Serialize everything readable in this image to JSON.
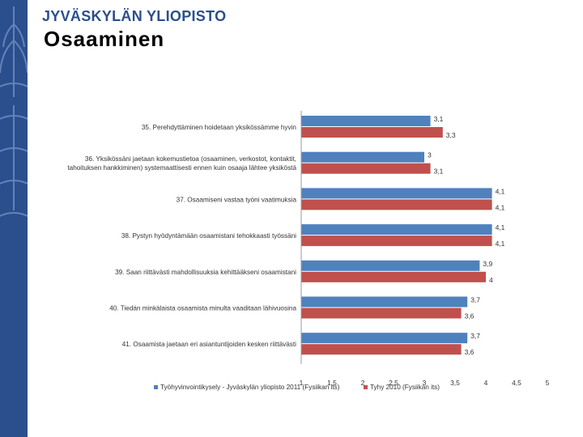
{
  "header": {
    "brand": "JYVÄSKYLÄN YLIOPISTO",
    "title": "Osaaminen"
  },
  "colors": {
    "sidebar": "#2b4f8c",
    "series_1": "#4f81bd",
    "series_2": "#c0504d"
  },
  "chart_data": {
    "type": "bar",
    "orientation": "horizontal",
    "title": "",
    "xlabel": "",
    "ylabel": "",
    "xlim": [
      1,
      5
    ],
    "x_ticks": [
      "1",
      "1,5",
      "2",
      "2,5",
      "3",
      "3,5",
      "4",
      "4,5",
      "5"
    ],
    "grid": false,
    "legend_position": "bottom",
    "categories": [
      "35. Perehdyttäminen hoidetaan yksikössämme hyvin",
      "36. Yksikössäni jaetaan kokemustietoa (osaaminen, verkostot, kontaktit, tahoituksen hankkiminen) systemaattisesti ennen kuin osaaja lähtee yksiköstä",
      "37. Osaamiseni vastaa työni vaatimuksia",
      "38. Pystyn hyödyntämään osaamistani tehokkaasti työssäni",
      "39. Saan riittävästi mahdollisuuksia kehittääkseni osaamistani",
      "40. Tiedän minkälaista osaamista minulta vaaditaan lähivuosina",
      "41. Osaamista jaetaan eri asiantuntijoiden kesken riittävästi"
    ],
    "category_lines": [
      [
        "35. Perehdyttäminen hoidetaan yksikössämme hyvin"
      ],
      [
        "36. Yksikössäni jaetaan kokemustietoa (osaaminen, verkostot, kontaktit,",
        "tahoituksen hankkiminen) systemaattisesti ennen kuin osaaja lähtee yksiköstä"
      ],
      [
        "37. Osaamiseni vastaa työni vaatimuksia"
      ],
      [
        "38. Pystyn hyödyntämään osaamistani tehokkaasti työssäni"
      ],
      [
        "39. Saan riittävästi mahdollisuuksia kehittääkseni osaamistani"
      ],
      [
        "40. Tiedän minkälaista osaamista minulta vaaditaan lähivuosina"
      ],
      [
        "41. Osaamista jaetaan eri asiantuntijoiden kesken riittävästi"
      ]
    ],
    "series": [
      {
        "name": "Työhyvinvointikysely - Jyväskylän yliopisto 2011 (Fysiikan its)",
        "color": "#4f81bd",
        "values": [
          3.1,
          3.0,
          4.1,
          4.1,
          3.9,
          3.7,
          3.7
        ],
        "labels": [
          "3,1",
          "3",
          "4,1",
          "4,1",
          "3,9",
          "3,7",
          "3,7"
        ]
      },
      {
        "name": "Tyhy 2010 (Fysiikan its)",
        "color": "#c0504d",
        "values": [
          3.3,
          3.1,
          4.1,
          4.1,
          4.0,
          3.6,
          3.6
        ],
        "labels": [
          "3,3",
          "3,1",
          "4,1",
          "4,1",
          "4",
          "3,6",
          "3,6"
        ]
      }
    ]
  }
}
